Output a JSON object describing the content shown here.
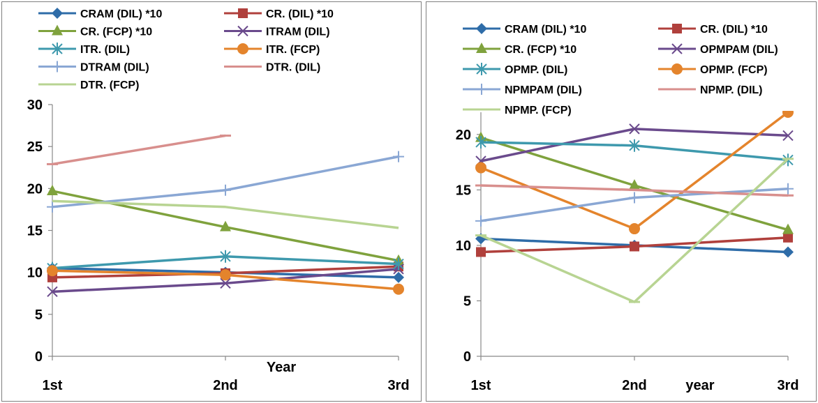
{
  "chart_data": [
    {
      "type": "line",
      "categories": [
        "1st",
        "2nd",
        "3rd"
      ],
      "xlabel": "Year",
      "ylabel": "",
      "ylim": [
        0,
        30
      ],
      "yticks": [
        0,
        5,
        10,
        15,
        20,
        25,
        30
      ],
      "grid": false,
      "legend_position": "top",
      "series": [
        {
          "name": "CRAM (DIL) *10",
          "color": "#2e6ca8",
          "marker": "diamond",
          "values": [
            10.5,
            10.0,
            9.4
          ]
        },
        {
          "name": "CR. (DIL) *10",
          "color": "#b0403c",
          "marker": "square",
          "values": [
            9.4,
            9.9,
            10.7
          ]
        },
        {
          "name": "CR. (FCP) *10",
          "color": "#7fa23d",
          "marker": "triangle",
          "values": [
            19.7,
            15.4,
            11.4
          ]
        },
        {
          "name": "ITRAM (DIL)",
          "color": "#6a4a8c",
          "marker": "x",
          "values": [
            7.7,
            8.7,
            10.4
          ]
        },
        {
          "name": "ITR. (DIL)",
          "color": "#3e99ad",
          "marker": "star",
          "values": [
            10.5,
            11.9,
            11.0
          ]
        },
        {
          "name": "ITR. (FCP)",
          "color": "#e4842c",
          "marker": "circle",
          "values": [
            10.2,
            9.7,
            8.0
          ]
        },
        {
          "name": "DTRAM (DIL)",
          "color": "#8aa7d4",
          "marker": "plus",
          "values": [
            17.8,
            19.8,
            23.8
          ]
        },
        {
          "name": "DTR. (DIL)",
          "color": "#d88f8d",
          "marker": "dash",
          "values": [
            22.9,
            26.3,
            null
          ]
        },
        {
          "name": "DTR. (FCP)",
          "color": "#b8d492",
          "marker": "none",
          "values": [
            18.5,
            17.8,
            15.3
          ]
        }
      ]
    },
    {
      "type": "line",
      "categories": [
        "1st",
        "2nd",
        "3rd"
      ],
      "xlabel": "year",
      "ylabel": "",
      "ylim": [
        0,
        22
      ],
      "yticks": [
        0,
        5,
        10,
        15,
        20
      ],
      "grid": false,
      "legend_position": "top",
      "series": [
        {
          "name": "CRAM (DIL) *10",
          "color": "#2e6ca8",
          "marker": "diamond",
          "values": [
            10.6,
            10.0,
            9.4
          ]
        },
        {
          "name": "CR. (DIL) *10",
          "color": "#b0403c",
          "marker": "square",
          "values": [
            9.4,
            9.9,
            10.7
          ]
        },
        {
          "name": "CR. (FCP) *10",
          "color": "#7fa23d",
          "marker": "triangle",
          "values": [
            19.7,
            15.4,
            11.4
          ]
        },
        {
          "name": "OPMPAM (DIL)",
          "color": "#6a4a8c",
          "marker": "x",
          "values": [
            17.6,
            20.5,
            19.9
          ]
        },
        {
          "name": "OPMP. (DIL)",
          "color": "#3e99ad",
          "marker": "star",
          "values": [
            19.3,
            19.0,
            17.7
          ]
        },
        {
          "name": "OPMP. (FCP)",
          "color": "#e4842c",
          "marker": "circle",
          "values": [
            17.0,
            11.5,
            22.0
          ]
        },
        {
          "name": "NPMPAM (DIL)",
          "color": "#8aa7d4",
          "marker": "plus",
          "values": [
            12.2,
            14.3,
            15.1
          ]
        },
        {
          "name": "NPMP. (DIL)",
          "color": "#d88f8d",
          "marker": "dash",
          "values": [
            15.4,
            15.0,
            14.5
          ]
        },
        {
          "name": "NPMP. (FCP)",
          "color": "#b8d492",
          "marker": "dash",
          "values": [
            10.9,
            4.9,
            17.8
          ]
        }
      ]
    }
  ]
}
